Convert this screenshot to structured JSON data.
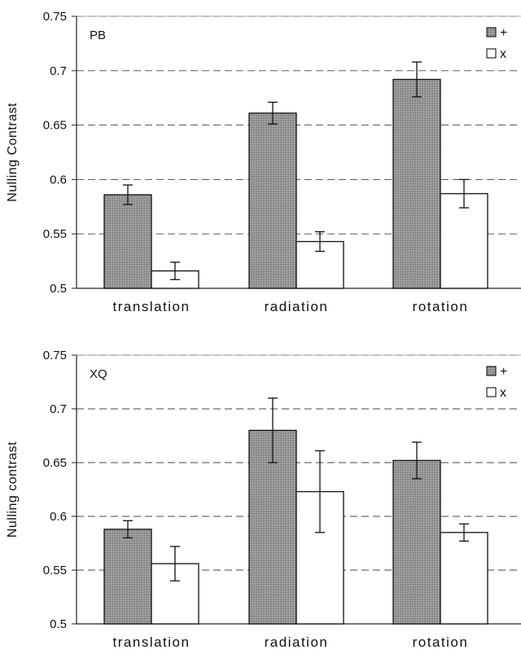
{
  "chart_data": [
    {
      "type": "bar",
      "panel_label": "PB",
      "ylabel": "Nulling  Contrast",
      "categories": [
        "translation",
        "radiation",
        "rotation"
      ],
      "ylim": [
        0.5,
        0.75
      ],
      "yticks": [
        "0.5",
        "0.55",
        "0.6",
        "0.65",
        "0.7",
        "0.75"
      ],
      "grid": "horizontal dashed",
      "legend_position": "top-right",
      "series": [
        {
          "name": "+",
          "color": "#8f8f8f",
          "values": [
            0.586,
            0.661,
            0.692
          ],
          "errors": [
            0.009,
            0.01,
            0.016
          ]
        },
        {
          "name": "x",
          "color": "#ffffff",
          "values": [
            0.516,
            0.543,
            0.587
          ],
          "errors": [
            0.008,
            0.009,
            0.013
          ]
        }
      ]
    },
    {
      "type": "bar",
      "panel_label": "XQ",
      "ylabel": "Nulling contrast",
      "categories": [
        "translation",
        "radiation",
        "rotation"
      ],
      "ylim": [
        0.5,
        0.75
      ],
      "yticks": [
        "0.5",
        "0.55",
        "0.6",
        "0.65",
        "0.7",
        "0.75"
      ],
      "grid": "horizontal dashed",
      "legend_position": "top-right",
      "series": [
        {
          "name": "+",
          "color": "#8f8f8f",
          "values": [
            0.588,
            0.68,
            0.652
          ],
          "errors": [
            0.008,
            0.03,
            0.017
          ]
        },
        {
          "name": "x",
          "color": "#ffffff",
          "values": [
            0.556,
            0.623,
            0.585
          ],
          "errors": [
            0.016,
            0.038,
            0.008
          ]
        }
      ]
    }
  ]
}
